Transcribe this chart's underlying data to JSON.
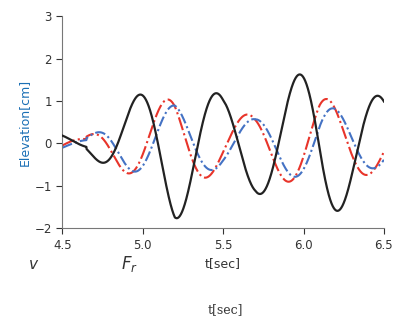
{
  "xlim": [
    4.5,
    6.5
  ],
  "ylim": [
    -2,
    3
  ],
  "xlabel": "t[sec]",
  "ylabel": "Elevation[cm]",
  "xticks": [
    4.5,
    5.0,
    5.5,
    6.0,
    6.5
  ],
  "yticks": [
    -2,
    -1,
    0,
    1,
    2,
    3
  ],
  "background_color": "#ffffff",
  "line_black_color": "#222222",
  "line_red_color": "#e8342a",
  "line_blue_color": "#4472c4",
  "bottom_text_v": "v",
  "bottom_text_Fr": "F_r",
  "bottom_text_tsec": "t[sec]",
  "ylabel_color": "#1a6fb5"
}
